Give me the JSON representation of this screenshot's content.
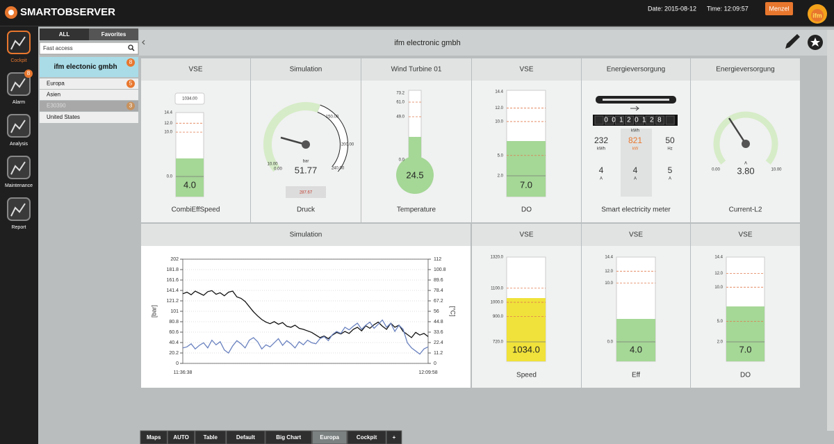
{
  "header": {
    "brand": "SMARTOBSERVER",
    "date": "Date: 2015-08-12",
    "time": "Time: 12:09:57",
    "user": "Menzel",
    "logo": "ifm"
  },
  "nav": [
    {
      "label": "Cockpit"
    },
    {
      "label": "Alarm",
      "badge": "8"
    },
    {
      "label": "Analysis"
    },
    {
      "label": "Maintenance"
    },
    {
      "label": "Report"
    }
  ],
  "tree": {
    "tabs": [
      "ALL",
      "Favorites"
    ],
    "search": "Fast access",
    "items": [
      {
        "label": "ifm electonic gmbh",
        "badge": "8"
      },
      {
        "label": "Europa",
        "badge": "5"
      },
      {
        "label": "Asien"
      },
      {
        "label": "E30390",
        "badge": "3"
      },
      {
        "label": "United States"
      }
    ]
  },
  "title": "ifm electronic gmbh",
  "widgets": [
    {
      "title": "VSE",
      "label": "CombiEffSpeed",
      "setpoint": "1034.00",
      "scale": [
        "14.4",
        "12.0",
        "10.0",
        "0.0"
      ],
      "value": "4.0"
    },
    {
      "title": "Simulation",
      "label": "Druck",
      "scale": [
        "10.00",
        "0.00",
        "150.00",
        "200.00",
        "240.00"
      ],
      "unit": "bar",
      "value": "51.77",
      "setpoint": "287.67"
    },
    {
      "title": "Wind Turbine 01",
      "label": "Temperature",
      "scale": [
        "73.2",
        "61.0",
        "49.0",
        "0.0"
      ],
      "value": "24.5"
    },
    {
      "title": "VSE",
      "label": "DO",
      "scale": [
        "14.4",
        "12.0",
        "10.0",
        "5.0",
        "2.0"
      ],
      "value": "7.0"
    },
    {
      "title": "Energieversorgung",
      "label": "Smart electricity meter",
      "counter": "00120128",
      "counter_unit": "kWh",
      "readings": [
        {
          "value": "232",
          "unit": "kWh"
        },
        {
          "value": "821",
          "unit": "kW"
        },
        {
          "value": "50",
          "unit": "Hz"
        },
        {
          "value": "4",
          "unit": "A"
        },
        {
          "value": "4",
          "unit": "A"
        },
        {
          "value": "5",
          "unit": "A"
        }
      ]
    },
    {
      "title": "Energieversorgung",
      "label": "Current-L2",
      "scale": [
        "0.00",
        "10.00"
      ],
      "unit": "A",
      "value": "3.80"
    },
    {
      "title": "VSE",
      "label": "Speed",
      "scale": [
        "1320.0",
        "1100.0",
        "1000.0",
        "900.0",
        "720.0"
      ],
      "value": "1034.0"
    },
    {
      "title": "VSE",
      "label": "Eff",
      "scale": [
        "14.4",
        "12.0",
        "10.0",
        "0.0"
      ],
      "value": "4.0"
    },
    {
      "title": "VSE",
      "label": "DO",
      "scale": [
        "14.4",
        "12.0",
        "10.0",
        "5.0",
        "2.0"
      ],
      "value": "7.0"
    }
  ],
  "chart_data": {
    "type": "line",
    "title": "Simulation",
    "y_label": "[bar]",
    "y2_label": "[°C]",
    "categories": [
      "11:36:38",
      null,
      null,
      null,
      null,
      null,
      null,
      null,
      null,
      null,
      null,
      null,
      null,
      null,
      null,
      null,
      null,
      null,
      null,
      null,
      null,
      null,
      null,
      null,
      null,
      null,
      null,
      null,
      null,
      null,
      null,
      null,
      null,
      null,
      null,
      null,
      null,
      null,
      null,
      null,
      null,
      null,
      null,
      null,
      null,
      null,
      null,
      null,
      null,
      null,
      null,
      null,
      null,
      null,
      null,
      null,
      null,
      null,
      null,
      "12:09:58"
    ],
    "ylim": [
      0,
      202
    ],
    "yticks": [
      0,
      20.2,
      40.4,
      60.6,
      80.8,
      101,
      121.2,
      141.4,
      161.6,
      181.8,
      202
    ],
    "y2lim": [
      0,
      112
    ],
    "y2ticks": [
      0,
      11.2,
      22.4,
      33.6,
      44.8,
      56,
      67.2,
      78.4,
      89.6,
      100.8,
      112
    ],
    "grid": true,
    "series": [
      {
        "color": "#111111",
        "values": [
          135,
          138,
          133,
          140,
          136,
          132,
          139,
          141,
          134,
          137,
          131,
          138,
          140,
          129,
          126,
          120,
          110,
          100,
          92,
          85,
          80,
          77,
          81,
          76,
          79,
          72,
          70,
          74,
          68,
          66,
          63,
          60,
          55,
          50,
          53,
          48,
          55,
          60,
          57,
          62,
          58,
          66,
          70,
          63,
          73,
          68,
          75,
          80,
          72,
          66,
          78,
          70,
          74,
          62,
          56,
          50,
          60,
          55,
          58,
          52
        ]
      },
      {
        "color": "#6a82bf",
        "values": [
          30,
          32,
          38,
          28,
          35,
          40,
          30,
          45,
          36,
          42,
          26,
          20,
          34,
          44,
          38,
          30,
          45,
          50,
          42,
          28,
          36,
          32,
          40,
          48,
          35,
          44,
          38,
          30,
          42,
          36,
          45,
          40,
          38,
          48,
          52,
          44,
          56,
          62,
          58,
          70,
          65,
          72,
          78,
          66,
          74,
          80,
          68,
          76,
          84,
          70,
          78,
          62,
          74,
          66,
          40,
          30,
          24,
          18,
          28,
          32
        ]
      }
    ]
  },
  "tabs": [
    {
      "label": "Maps"
    },
    {
      "label": "AUTO"
    },
    {
      "label": "Table"
    },
    {
      "label": "Default"
    },
    {
      "label": "Big Chart"
    },
    {
      "label": "Europa",
      "active": true
    },
    {
      "label": "Cockpit"
    },
    {
      "label": "+"
    }
  ]
}
